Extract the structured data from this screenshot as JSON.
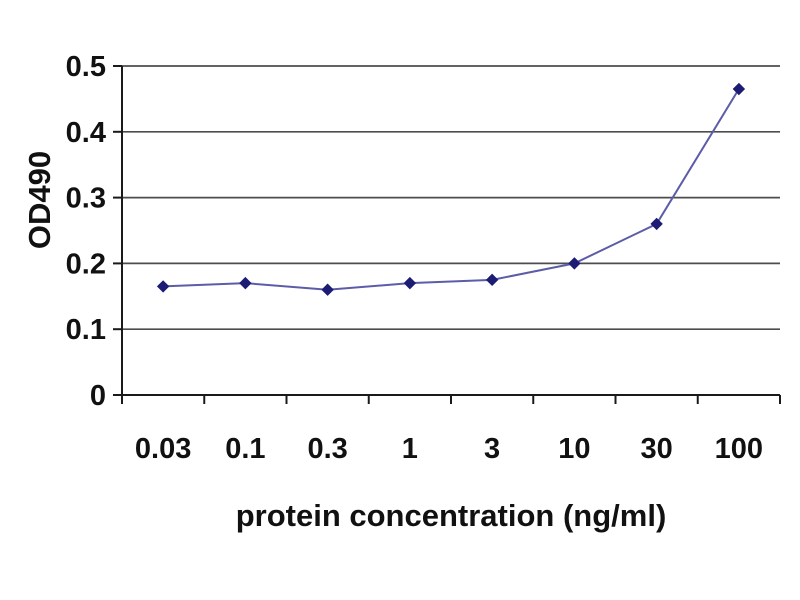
{
  "chart_data": {
    "type": "line",
    "categories": [
      "0.03",
      "0.1",
      "0.3",
      "1",
      "3",
      "10",
      "30",
      "100"
    ],
    "series": [
      {
        "name": "OD490",
        "values": [
          0.165,
          0.17,
          0.16,
          0.17,
          0.175,
          0.2,
          0.26,
          0.465
        ]
      }
    ],
    "xlabel": "protein concentration (ng/ml)",
    "ylabel": "OD490",
    "ylim": [
      0,
      0.5
    ],
    "yticks": [
      "0",
      "0.1",
      "0.2",
      "0.3",
      "0.4",
      "0.5"
    ],
    "grid": true,
    "legend": "none",
    "marker_shape": "diamond",
    "colors": {
      "line": "#5c5ca8",
      "marker": "#1c1c74",
      "gridline": "#4d4d4d",
      "axis": "#1a1a1a",
      "text": "#111111",
      "background": "#ffffff"
    }
  }
}
